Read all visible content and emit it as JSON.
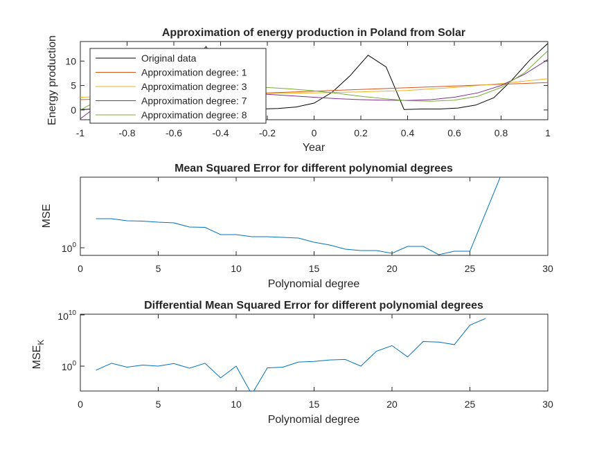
{
  "chart_data": [
    {
      "type": "line",
      "title": "Approximation of energy production in Poland from Solar",
      "xlabel": "Year",
      "ylabel": "Energy production",
      "xlim": [
        -1,
        1
      ],
      "ylim": [
        -2,
        14
      ],
      "x_ticks": [
        -1,
        -0.8,
        -0.6,
        -0.4,
        -0.2,
        0,
        0.2,
        0.4,
        0.6,
        0.8,
        1
      ],
      "x_tick_labels": [
        "-1",
        "-0.8",
        "-0.6",
        "-0.4",
        "-0.2",
        "0",
        "0.2",
        "0.4",
        "0.6",
        "0.8",
        "1"
      ],
      "y_ticks": [
        0,
        5,
        10
      ],
      "y_tick_labels": [
        "0",
        "5",
        "10"
      ],
      "legend_position": "top-left",
      "grid": false,
      "series": [
        {
          "name": "Original data",
          "color": "#000000",
          "points": [
            [
              -1,
              0.1
            ],
            [
              -0.923,
              0.2
            ],
            [
              -0.846,
              0.2
            ],
            [
              -0.769,
              0.5
            ],
            [
              -0.692,
              1.8
            ],
            [
              -0.615,
              4.2
            ],
            [
              -0.538,
              8.6
            ],
            [
              -0.462,
              13.0
            ],
            [
              -0.385,
              6.1
            ],
            [
              -0.308,
              0.9
            ],
            [
              -0.231,
              0.2
            ],
            [
              -0.154,
              0.3
            ],
            [
              -0.077,
              0.6
            ],
            [
              0,
              1.4
            ],
            [
              0.077,
              3.6
            ],
            [
              0.154,
              7.0
            ],
            [
              0.231,
              11.2
            ],
            [
              0.308,
              8.8
            ],
            [
              0.385,
              0.1
            ],
            [
              0.462,
              0.2
            ],
            [
              0.538,
              0.2
            ],
            [
              0.615,
              0.4
            ],
            [
              0.692,
              1.0
            ],
            [
              0.769,
              2.5
            ],
            [
              0.846,
              6.1
            ],
            [
              0.923,
              10.2
            ],
            [
              1,
              13.6
            ]
          ]
        },
        {
          "name": "Approximation degree: 1",
          "color": "#d95319",
          "points": [
            [
              -1,
              2.1
            ],
            [
              -0.8,
              2.45
            ],
            [
              -0.6,
              2.8
            ],
            [
              -0.4,
              3.15
            ],
            [
              -0.2,
              3.5
            ],
            [
              0,
              3.85
            ],
            [
              0.2,
              4.2
            ],
            [
              0.4,
              4.55
            ],
            [
              0.6,
              4.9
            ],
            [
              0.8,
              5.25
            ],
            [
              1,
              5.6
            ]
          ]
        },
        {
          "name": "Approximation degree: 3",
          "color": "#edb120",
          "points": [
            [
              -1,
              2.6
            ],
            [
              -0.8,
              2.9
            ],
            [
              -0.6,
              3.15
            ],
            [
              -0.4,
              3.3
            ],
            [
              -0.2,
              3.4
            ],
            [
              0,
              3.5
            ],
            [
              0.2,
              3.7
            ],
            [
              0.4,
              4.0
            ],
            [
              0.6,
              4.6
            ],
            [
              0.8,
              5.4
            ],
            [
              1,
              6.4
            ]
          ]
        },
        {
          "name": "Approximation degree: 7",
          "color": "#7e2f8e",
          "points": [
            [
              -1,
              -1.8
            ],
            [
              -0.9,
              1.8
            ],
            [
              -0.8,
              3.4
            ],
            [
              -0.7,
              4.0
            ],
            [
              -0.6,
              4.2
            ],
            [
              -0.5,
              4.1
            ],
            [
              -0.4,
              3.9
            ],
            [
              -0.3,
              3.6
            ],
            [
              -0.2,
              3.2
            ],
            [
              -0.1,
              2.9
            ],
            [
              0,
              2.6
            ],
            [
              0.1,
              2.3
            ],
            [
              0.2,
              2.1
            ],
            [
              0.3,
              2.0
            ],
            [
              0.4,
              1.95
            ],
            [
              0.5,
              2.1
            ],
            [
              0.6,
              2.6
            ],
            [
              0.7,
              3.5
            ],
            [
              0.8,
              5.0
            ],
            [
              0.9,
              7.3
            ],
            [
              1,
              10.3
            ]
          ]
        },
        {
          "name": "Approximation degree: 8",
          "color": "#77ac30",
          "points": [
            [
              -1,
              0.0
            ],
            [
              -0.9,
              2.6
            ],
            [
              -0.8,
              4.3
            ],
            [
              -0.7,
              5.0
            ],
            [
              -0.6,
              5.3
            ],
            [
              -0.5,
              5.3
            ],
            [
              -0.4,
              5.1
            ],
            [
              -0.3,
              4.8
            ],
            [
              -0.2,
              4.6
            ],
            [
              -0.1,
              4.3
            ],
            [
              0,
              3.9
            ],
            [
              0.1,
              3.4
            ],
            [
              0.2,
              2.8
            ],
            [
              0.3,
              2.3
            ],
            [
              0.4,
              1.9
            ],
            [
              0.5,
              1.8
            ],
            [
              0.6,
              2.0
            ],
            [
              0.7,
              2.8
            ],
            [
              0.8,
              4.6
            ],
            [
              0.9,
              7.6
            ],
            [
              1,
              12.1
            ]
          ]
        }
      ]
    },
    {
      "type": "line",
      "title": "Mean Squared Error for different polynomial degrees",
      "xlabel": "Polynomial degree",
      "ylabel": "MSE",
      "xlim": [
        0,
        30
      ],
      "log_y": true,
      "x_ticks": [
        0,
        5,
        10,
        15,
        20,
        25,
        30
      ],
      "x_tick_labels": [
        "0",
        "5",
        "10",
        "15",
        "20",
        "25",
        "30"
      ],
      "y_tick_labels": [
        {
          "base": "10",
          "exp": "0"
        }
      ],
      "grid": false,
      "series": [
        {
          "color": "#0072bd",
          "x": [
            1,
            2,
            3,
            4,
            5,
            6,
            7,
            8,
            9,
            10,
            11,
            12,
            13,
            14,
            15,
            16,
            17,
            18,
            19,
            20,
            21,
            22,
            23,
            24,
            25,
            27
          ],
          "y_norm": [
            0.42,
            0.42,
            0.39,
            0.385,
            0.37,
            0.36,
            0.3,
            0.295,
            0.19,
            0.19,
            0.16,
            0.16,
            0.15,
            0.14,
            0.08,
            0.04,
            -0.02,
            -0.04,
            -0.04,
            -0.08,
            0.02,
            0.02,
            -0.1,
            -0.05,
            -0.05,
            1.05
          ]
        }
      ]
    },
    {
      "type": "line",
      "title": "Differential Mean Squared Error for different polynomial degrees",
      "xlabel": "Polynomial degree",
      "ylabel": "MSE",
      "ylabel_subscript": "K",
      "xlim": [
        0,
        30
      ],
      "ylim_log10": [
        -2.2,
        10
      ],
      "log_y": true,
      "x_ticks": [
        0,
        5,
        10,
        15,
        20,
        25,
        30
      ],
      "x_tick_labels": [
        "0",
        "5",
        "10",
        "15",
        "20",
        "25",
        "30"
      ],
      "y_tick_labels": [
        {
          "base": "10",
          "exp": "10",
          "value": 10
        },
        {
          "base": "10",
          "exp": "0",
          "value": 0
        }
      ],
      "grid": false,
      "series": [
        {
          "color": "#0072bd",
          "x": [
            1,
            2,
            3,
            4,
            5,
            6,
            7,
            8,
            9,
            10,
            11,
            12,
            13,
            14,
            15,
            16,
            17,
            18,
            19,
            20,
            21,
            22,
            23,
            24,
            25,
            26
          ],
          "y_log10": [
            -0.8,
            0.55,
            -0.2,
            0.2,
            0.0,
            0.5,
            -0.4,
            0.55,
            -2.3,
            0.0,
            -5.5,
            -0.35,
            -0.2,
            0.8,
            0.9,
            1.2,
            1.3,
            0.0,
            2.9,
            4.0,
            1.8,
            4.8,
            4.7,
            4.2,
            8.0,
            9.3
          ]
        }
      ]
    }
  ]
}
